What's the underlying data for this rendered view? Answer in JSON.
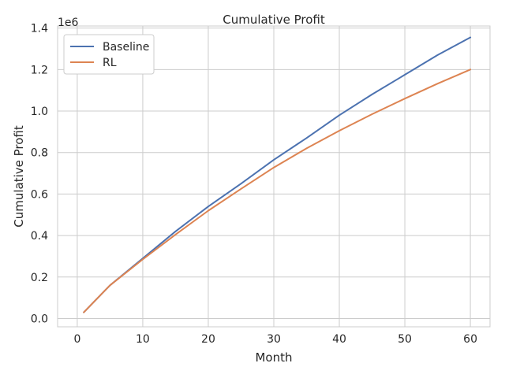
{
  "chart_data": {
    "type": "line",
    "title": "Cumulative Profit",
    "xlabel": "Month",
    "ylabel": "Cumulative Profit",
    "y_scale_label": "1e6",
    "xlim": [
      -3,
      63
    ],
    "ylim": [
      -0.04,
      1.41
    ],
    "x_ticks": [
      0,
      10,
      20,
      30,
      40,
      50,
      60
    ],
    "y_ticks": [
      0.0,
      0.2,
      0.4,
      0.6,
      0.8,
      1.0,
      1.2,
      1.4
    ],
    "y_tick_labels": [
      "0.0",
      "0.2",
      "0.4",
      "0.6",
      "0.8",
      "1.0",
      "1.2",
      "1.4"
    ],
    "grid": true,
    "legend_position": "top-left",
    "x": [
      1,
      5,
      10,
      15,
      20,
      25,
      30,
      35,
      40,
      45,
      50,
      55,
      60
    ],
    "series": [
      {
        "name": "Baseline",
        "color": "#4c72b0",
        "values": [
          0.03,
          0.16,
          0.29,
          0.42,
          0.54,
          0.65,
          0.765,
          0.87,
          0.98,
          1.08,
          1.175,
          1.27,
          1.355
        ]
      },
      {
        "name": "RL",
        "color": "#dd8452",
        "values": [
          0.03,
          0.16,
          0.285,
          0.405,
          0.52,
          0.625,
          0.728,
          0.82,
          0.905,
          0.985,
          1.06,
          1.132,
          1.2
        ]
      }
    ]
  }
}
